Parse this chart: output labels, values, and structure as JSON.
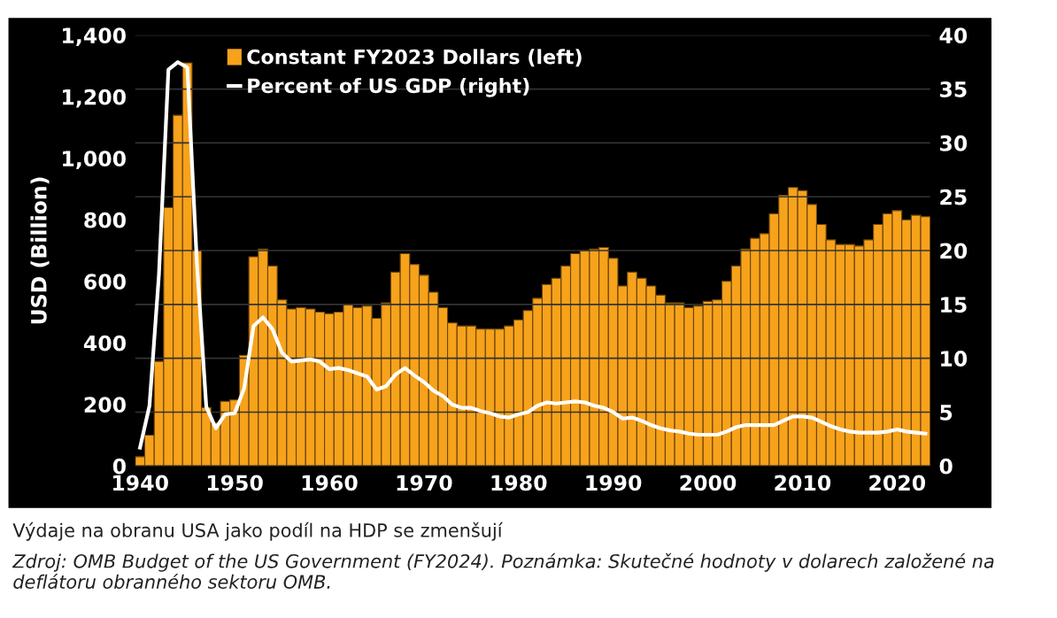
{
  "chart_data": {
    "type": "bar",
    "x": [
      1940,
      1941,
      1942,
      1943,
      1944,
      1945,
      1946,
      1947,
      1948,
      1949,
      1950,
      1951,
      1952,
      1953,
      1954,
      1955,
      1956,
      1957,
      1958,
      1959,
      1960,
      1961,
      1962,
      1963,
      1964,
      1965,
      1966,
      1967,
      1968,
      1969,
      1970,
      1971,
      1972,
      1973,
      1974,
      1975,
      1976,
      1977,
      1978,
      1979,
      1980,
      1981,
      1982,
      1983,
      1984,
      1985,
      1986,
      1987,
      1988,
      1989,
      1990,
      1991,
      1992,
      1993,
      1994,
      1995,
      1996,
      1997,
      1998,
      1999,
      2000,
      2001,
      2002,
      2003,
      2004,
      2005,
      2006,
      2007,
      2008,
      2009,
      2010,
      2011,
      2012,
      2013,
      2014,
      2015,
      2016,
      2017,
      2018,
      2019,
      2020,
      2021,
      2022,
      2023
    ],
    "series": [
      {
        "name": "Constant FY2023 Dollars (left)",
        "color": "#f7a21b",
        "values": [
          30,
          100,
          340,
          840,
          1140,
          1310,
          700,
          190,
          140,
          210,
          215,
          360,
          680,
          705,
          650,
          540,
          510,
          515,
          510,
          500,
          495,
          500,
          525,
          515,
          520,
          480,
          530,
          630,
          690,
          655,
          620,
          565,
          515,
          465,
          455,
          455,
          445,
          445,
          445,
          455,
          475,
          505,
          545,
          590,
          610,
          650,
          690,
          700,
          705,
          710,
          675,
          585,
          630,
          610,
          585,
          555,
          530,
          530,
          515,
          520,
          535,
          540,
          600,
          650,
          705,
          740,
          755,
          820,
          880,
          905,
          895,
          850,
          785,
          735,
          720,
          720,
          715,
          735,
          785,
          820,
          830,
          800,
          815,
          810
        ]
      },
      {
        "name": "Percent of US GDP (right)",
        "type": "line",
        "axis": "y2",
        "color": "#ffffff",
        "values": [
          1.7,
          5.6,
          17.8,
          36.8,
          37.5,
          37.0,
          19.0,
          5.5,
          3.5,
          4.8,
          4.9,
          7.2,
          13.0,
          13.8,
          12.7,
          10.5,
          9.7,
          9.8,
          9.9,
          9.7,
          9.0,
          9.1,
          8.9,
          8.6,
          8.3,
          7.1,
          7.4,
          8.5,
          9.1,
          8.4,
          7.8,
          7.0,
          6.5,
          5.7,
          5.4,
          5.4,
          5.1,
          4.9,
          4.6,
          4.5,
          4.8,
          5.0,
          5.6,
          5.9,
          5.8,
          5.9,
          6.0,
          5.9,
          5.6,
          5.4,
          5.0,
          4.4,
          4.5,
          4.2,
          3.8,
          3.5,
          3.3,
          3.2,
          3.0,
          2.9,
          2.9,
          2.9,
          3.2,
          3.6,
          3.8,
          3.8,
          3.8,
          3.8,
          4.2,
          4.6,
          4.6,
          4.5,
          4.1,
          3.7,
          3.4,
          3.2,
          3.1,
          3.1,
          3.1,
          3.2,
          3.4,
          3.2,
          3.1,
          3.0
        ]
      }
    ],
    "ylabel": "USD (Billion)",
    "xlim": [
      1939.5,
      2023.5
    ],
    "xticks": [
      1940,
      1950,
      1960,
      1970,
      1980,
      1990,
      2000,
      2010,
      2020
    ],
    "ylim": [
      0,
      1400
    ],
    "yticks": [
      0,
      {
        "value": 200,
        "label": "200"
      },
      {
        "value": 400,
        "label": "400"
      },
      {
        "value": 600,
        "label": "600"
      },
      {
        "value": 800,
        "label": "800"
      },
      {
        "value": 1000,
        "label": "1,000"
      },
      {
        "value": 1200,
        "label": "1,200"
      },
      {
        "value": 1400,
        "label": "1,400"
      }
    ],
    "y2lim": [
      0,
      40
    ],
    "y2ticks": [
      0,
      5,
      10,
      15,
      20,
      25,
      30,
      35,
      40
    ],
    "grid": "y",
    "legend": "top left",
    "annotations": [
      "Výdaje na obranu USA jako podíl na HDP se zmenšují",
      "Zdroj: OMB Budget of the US Government (FY2024). Poznámka: Skutečné hodnoty v dolarech založené na deflátoru obranného sektoru OMB."
    ]
  }
}
